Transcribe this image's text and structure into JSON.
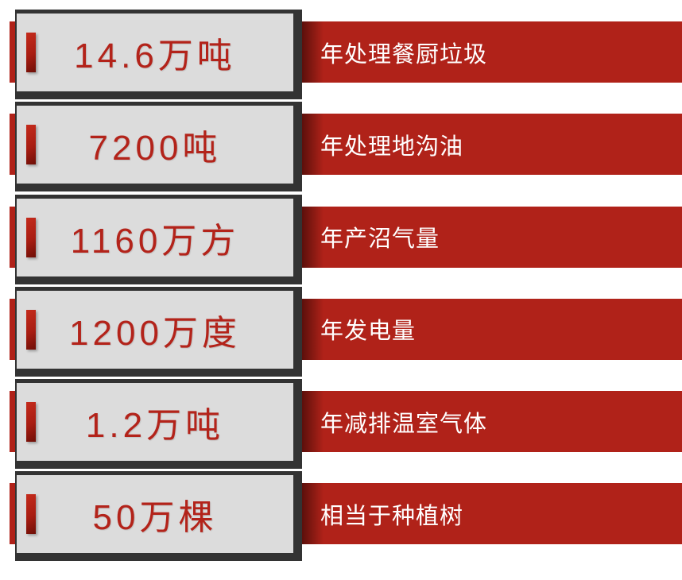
{
  "colors": {
    "page_bg": "#ffffff",
    "band_red": "#b02219",
    "frame_dark": "#333333",
    "plate_gray": "#dcdcdc",
    "value_red": "#b3231a",
    "label_white": "#ffffff"
  },
  "stats": [
    {
      "value": "14.6万吨",
      "label": "年处理餐厨垃圾"
    },
    {
      "value": "7200吨",
      "label": "年处理地沟油"
    },
    {
      "value": "1160万方",
      "label": "年产沼气量"
    },
    {
      "value": "1200万度",
      "label": "年发电量"
    },
    {
      "value": "1.2万吨",
      "label": "年减排温室气体"
    },
    {
      "value": "50万棵",
      "label": "相当于种植树"
    }
  ],
  "chart_data": {
    "type": "table",
    "rows": [
      [
        "14.6万吨",
        "年处理餐厨垃圾"
      ],
      [
        "7200吨",
        "年处理地沟油"
      ],
      [
        "1160万方",
        "年产沼气量"
      ],
      [
        "1200万度",
        "年发电量"
      ],
      [
        "1.2万吨",
        "年减排温室气体"
      ],
      [
        "50万棵",
        "相当于种植树"
      ]
    ],
    "values_numeric": [
      {
        "number": 14.6,
        "unit": "万吨",
        "label": "年处理餐厨垃圾"
      },
      {
        "number": 7200,
        "unit": "吨",
        "label": "年处理地沟油"
      },
      {
        "number": 1160,
        "unit": "万方",
        "label": "年产沼气量"
      },
      {
        "number": 1200,
        "unit": "万度",
        "label": "年发电量"
      },
      {
        "number": 1.2,
        "unit": "万吨",
        "label": "年减排温室气体"
      },
      {
        "number": 50,
        "unit": "万棵",
        "label": "相当于种植树"
      }
    ]
  }
}
